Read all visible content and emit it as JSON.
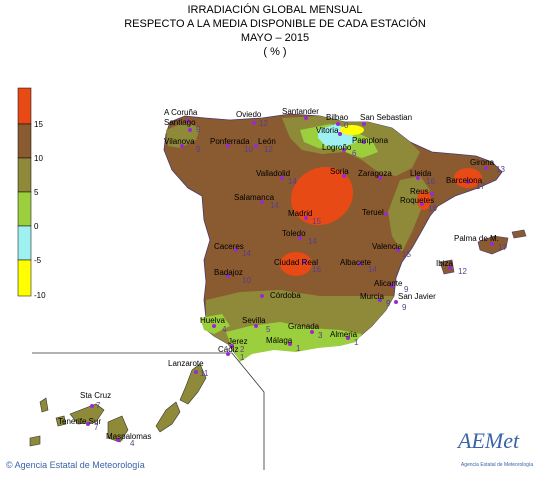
{
  "titles": {
    "line1": "IRRADIACIÓN GLOBAL MENSUAL",
    "line2": "RESPECTO A LA MEDIA DISPONIBLE DE CADA ESTACIÓN",
    "line3": "MAYO – 2015",
    "line4": "( % )"
  },
  "legend": {
    "ticks": [
      "15",
      "10",
      "5",
      "0",
      "-5",
      "-10"
    ],
    "colors": [
      "#e84a16",
      "#8a5a30",
      "#8e8a3a",
      "#9ccf3e",
      "#9ff0f0",
      "#ffff00"
    ]
  },
  "stations": [
    {
      "name": "A Coruña",
      "value": ""
    },
    {
      "name": "Santiago",
      "value": "9"
    },
    {
      "name": "Oviedo",
      "value": "12"
    },
    {
      "name": "Santander",
      "value": ""
    },
    {
      "name": "Bilbao",
      "value": "0"
    },
    {
      "name": "San Sebastian",
      "value": ""
    },
    {
      "name": "Vitoria",
      "value": ""
    },
    {
      "name": "Pamplona",
      "value": ""
    },
    {
      "name": "Logroño",
      "value": "6"
    },
    {
      "name": "Vilanova",
      "value": "9"
    },
    {
      "name": "Ponferrada",
      "value": "10"
    },
    {
      "name": "León",
      "value": "12"
    },
    {
      "name": "Valladolid",
      "value": "14"
    },
    {
      "name": "Soria",
      "value": ""
    },
    {
      "name": "Zaragoza",
      "value": ""
    },
    {
      "name": "Lleida",
      "value": "16"
    },
    {
      "name": "Girona",
      "value": "13"
    },
    {
      "name": "Barcelona",
      "value": "17"
    },
    {
      "name": "Reus",
      "value": ""
    },
    {
      "name": "Roquetes",
      "value": "16"
    },
    {
      "name": "Salamanca",
      "value": "14"
    },
    {
      "name": "Madrid",
      "value": "15"
    },
    {
      "name": "Teruel",
      "value": ""
    },
    {
      "name": "Toledo",
      "value": "14"
    },
    {
      "name": "Valencia",
      "value": "15"
    },
    {
      "name": "Palma de M.",
      "value": "17"
    },
    {
      "name": "Caceres",
      "value": "14"
    },
    {
      "name": "Ciudad Real",
      "value": "16"
    },
    {
      "name": "Albacete",
      "value": "14"
    },
    {
      "name": "Ibiza",
      "value": "12"
    },
    {
      "name": "Badajoz",
      "value": "10"
    },
    {
      "name": "Alicante",
      "value": "9"
    },
    {
      "name": "Córdoba",
      "value": ""
    },
    {
      "name": "Murcia",
      "value": "9"
    },
    {
      "name": "San Javier",
      "value": "9"
    },
    {
      "name": "Huelva",
      "value": "4"
    },
    {
      "name": "Sevilla",
      "value": "5"
    },
    {
      "name": "Granada",
      "value": "3"
    },
    {
      "name": "Almeria",
      "value": "1"
    },
    {
      "name": "Jerez",
      "value": "2"
    },
    {
      "name": "Málaga",
      "value": "1"
    },
    {
      "name": "Cádiz",
      "value": "1"
    },
    {
      "name": "Lanzarote",
      "value": "11"
    },
    {
      "name": "Sta Cruz",
      "value": "7"
    },
    {
      "name": "Tenerife Sur",
      "value": "7"
    },
    {
      "name": "Maspalomas",
      "value": "4"
    }
  ],
  "credit": "Agencia Estatal de Meteorología",
  "logo": {
    "word": "AEMet",
    "subtitle": "Agencia Estatal de Meteorología"
  }
}
